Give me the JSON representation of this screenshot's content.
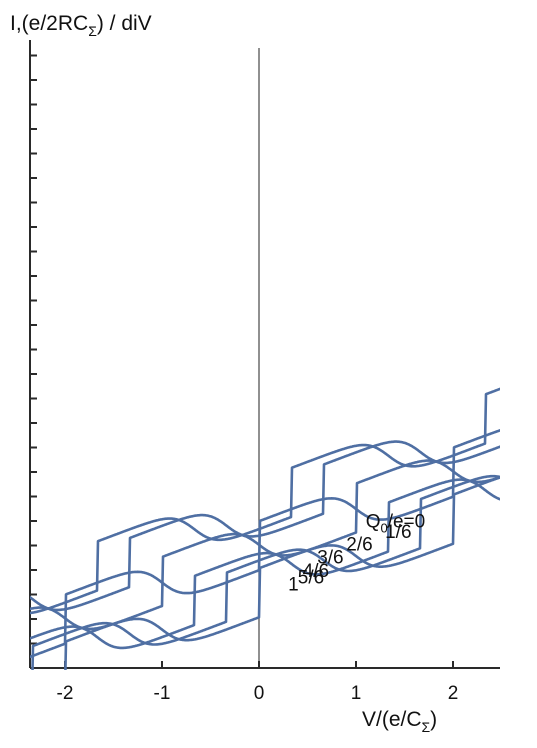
{
  "chart_data": {
    "type": "line",
    "title": "",
    "ylabel_parts": [
      "I,(e/2RC",
      "Σ",
      ") / diV"
    ],
    "xlabel_parts": [
      "V/(e/C",
      "Σ",
      ")"
    ],
    "xlim": [
      -2.45,
      2.55
    ],
    "x_ticks": [
      -2,
      -1,
      0,
      1,
      2
    ],
    "x_tick_labels": [
      "-2",
      "-1",
      "0",
      "1",
      "2"
    ],
    "y_tick_count": 26,
    "grid": false,
    "colors": {
      "curve": "#4f6fa3",
      "axis": "#2a2a2a"
    },
    "curve_label_color": "#111111",
    "series": [
      {
        "name": "Q₀/e=0",
        "label_parts": [
          "Q",
          "0",
          "/e=0"
        ],
        "q": 0,
        "y0": 40.7,
        "x_range": [
          -2.45,
          2.55
        ],
        "label_anchor": [
          1.1,
          57.4
        ]
      },
      {
        "name": "1/6",
        "q": 0.1667,
        "y0": 43.9,
        "x_range": [
          -2.45,
          2.55
        ],
        "label_anchor": [
          1.3,
          53.0
        ]
      },
      {
        "name": "2/6",
        "q": 0.3333,
        "y0": 46.6,
        "x_range": [
          -2.45,
          2.55
        ],
        "label_anchor": [
          0.9,
          47.9
        ]
      },
      {
        "name": "3/6",
        "q": 0.5,
        "y0": 50.3,
        "x_range": [
          -2.45,
          2.55
        ],
        "label_anchor": [
          0.6,
          42.6
        ]
      },
      {
        "name": "4/6",
        "q": 0.6667,
        "y0": 54.0,
        "x_range": [
          -2.45,
          2.55
        ],
        "label_anchor": [
          0.45,
          37.2
        ]
      },
      {
        "name": "5/6",
        "q": 0.8333,
        "y0": 56.7,
        "x_range": [
          -2.45,
          2.55
        ],
        "label_anchor": [
          0.4,
          34.4
        ]
      },
      {
        "name": "1",
        "q": 1.0,
        "y0": 59.9,
        "x_range": [
          -2.45,
          2.55
        ],
        "label_anchor": [
          0.3,
          31.6
        ]
      }
    ]
  }
}
